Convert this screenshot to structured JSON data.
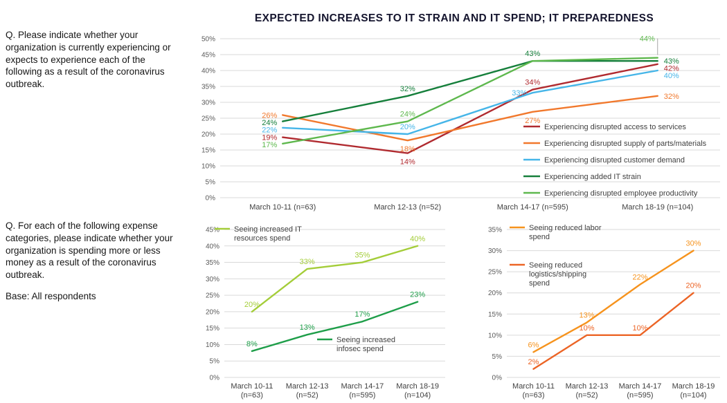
{
  "title": "EXPECTED INCREASES TO IT STRAIN AND IT SPEND; IT PREPAREDNESS",
  "left_panel": {
    "q1": "Q. Please indicate whether your organization is currently experiencing or expects to experience each of the following as a result of the coronavirus outbreak.",
    "q2": "Q. For each of the following expense categories, please indicate whether your organization is spending more or less money as a result of the coronavirus outbreak.",
    "base": "Base: All respondents"
  },
  "chart_data": [
    {
      "id": "experiencing",
      "type": "line",
      "title": "",
      "categories": [
        "March 10-11 (n=63)",
        "March 12-13 (n=52)",
        "March 14-17 (n=595)",
        "March 18-19 (n=104)"
      ],
      "ylim": [
        0,
        50
      ],
      "ytick_step": 5,
      "grid": true,
      "legend_position": "inside-right",
      "series": [
        {
          "name": "Experiencing disrupted access to services",
          "color": "#b02a2f",
          "values": [
            19,
            14,
            34,
            42
          ],
          "label_pos": [
            "left",
            "below",
            "above",
            "right"
          ]
        },
        {
          "name": "Experiencing disrupted supply of parts/materials",
          "color": "#f1782c",
          "values": [
            26,
            18,
            27,
            32
          ],
          "label_pos": [
            "left",
            "below",
            "below",
            "right"
          ]
        },
        {
          "name": "Experiencing disrupted customer demand",
          "color": "#45b5e8",
          "values": [
            22,
            20,
            33,
            40
          ],
          "label_pos": [
            "left",
            "above",
            "left",
            "right"
          ]
        },
        {
          "name": "Experiencing added IT strain",
          "color": "#157f3b",
          "values": [
            24,
            32,
            43,
            43
          ],
          "label_pos": [
            "left",
            "above",
            "above",
            "right"
          ]
        },
        {
          "name": "Experiencing disrupted employee productivity",
          "color": "#5eb84d",
          "values": [
            17,
            24,
            43,
            44
          ],
          "label_pos": [
            "left",
            "above",
            null,
            "callout-above"
          ]
        }
      ]
    },
    {
      "id": "it_spend",
      "type": "line",
      "title": "",
      "categories": [
        "March 10-11 (n=63)",
        "March 12-13 (n=52)",
        "March 14-17 (n=595)",
        "March 18-19 (n=104)"
      ],
      "ylim": [
        0,
        45
      ],
      "ytick_step": 5,
      "grid": true,
      "legend_position": "inside",
      "series": [
        {
          "name": "Seeing increased IT resources spend",
          "color": "#a4cd39",
          "values": [
            20,
            33,
            35,
            40
          ]
        },
        {
          "name": "Seeing increased infosec spend",
          "color": "#1e9e49",
          "values": [
            8,
            13,
            17,
            23
          ]
        }
      ]
    },
    {
      "id": "reduced_spend",
      "type": "line",
      "title": "",
      "categories": [
        "March 10-11 (n=63)",
        "March 12-13 (n=52)",
        "March 14-17 (n=595)",
        "March 18-19 (n=104)"
      ],
      "ylim": [
        0,
        35
      ],
      "ytick_step": 5,
      "grid": true,
      "legend_position": "inside",
      "series": [
        {
          "name": "Seeing reduced labor spend",
          "color": "#f6931d",
          "values": [
            6,
            13,
            22,
            30
          ]
        },
        {
          "name": "Seeing reduced logistics/shipping spend",
          "color": "#ec6425",
          "values": [
            2,
            10,
            10,
            20
          ]
        }
      ]
    }
  ]
}
